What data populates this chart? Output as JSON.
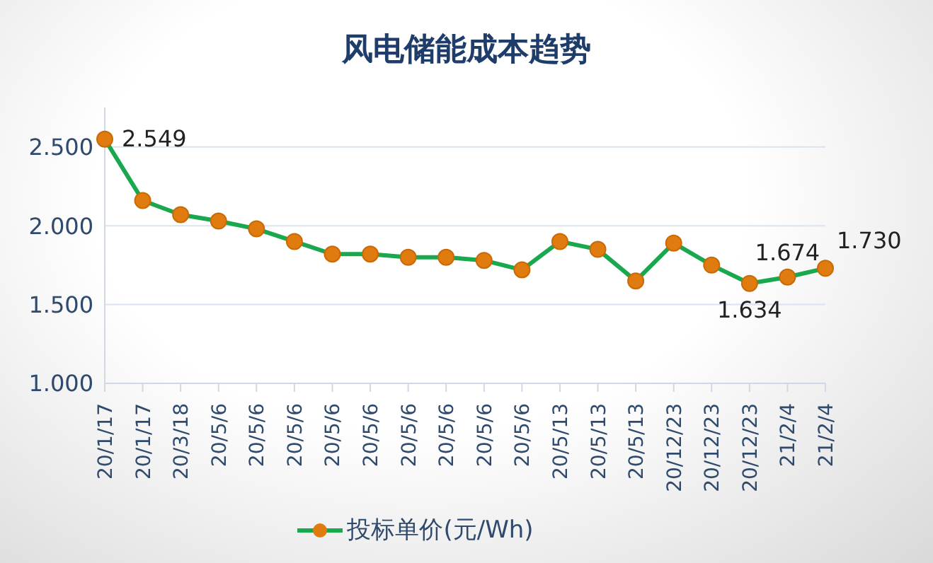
{
  "chart_data": {
    "type": "line",
    "title": "风电储能成本趋势",
    "categories": [
      "20/1/17",
      "20/1/17",
      "20/3/18",
      "20/5/6",
      "20/5/6",
      "20/5/6",
      "20/5/6",
      "20/5/6",
      "20/5/6",
      "20/5/6",
      "20/5/6",
      "20/5/6",
      "20/5/13",
      "20/5/13",
      "20/5/13",
      "20/12/23",
      "20/12/23",
      "20/12/23",
      "21/2/4",
      "21/2/4"
    ],
    "series": [
      {
        "name": "投标单价(元/Wh)",
        "color": "#1aa84f",
        "values": [
          2.549,
          2.16,
          2.07,
          2.03,
          1.98,
          1.9,
          1.82,
          1.82,
          1.8,
          1.8,
          1.78,
          1.72,
          1.9,
          1.85,
          1.65,
          1.89,
          1.75,
          1.634,
          1.674,
          1.73
        ],
        "value_labels": [
          "2.549",
          null,
          null,
          null,
          null,
          null,
          null,
          null,
          null,
          null,
          null,
          null,
          null,
          null,
          null,
          null,
          null,
          "1.634",
          "1.674",
          "1.730"
        ]
      }
    ],
    "ylim": [
      1,
      2.75
    ],
    "yticks": [
      {
        "value": 1,
        "label": "1.000"
      },
      {
        "value": 1.5,
        "label": "1.500"
      },
      {
        "value": 2,
        "label": "2.000"
      },
      {
        "value": 2.5,
        "label": "2.500"
      }
    ],
    "grid": "y",
    "legend": "bottom",
    "marker": "circle",
    "line_style": "solid"
  }
}
